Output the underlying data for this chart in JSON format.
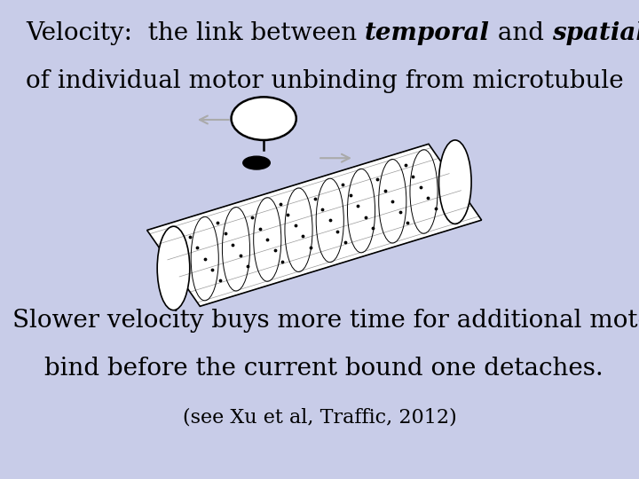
{
  "background_color": "#c8cce8",
  "title_line1_part1": "Velocity:  the link between ",
  "title_line1_bold_italic1": "temporal",
  "title_line1_part2": " and ",
  "title_line1_bold_italic2": "spatial",
  "title_line2": "of individual motor unbinding from microtubule",
  "body_line1": "Slower velocity buys more time for additional motor to",
  "body_line2": "bind before the current bound one detaches.",
  "citation": "(see Xu et al, Traffic, 2012)",
  "title_fontsize": 20,
  "body_fontsize": 20,
  "citation_fontsize": 16
}
